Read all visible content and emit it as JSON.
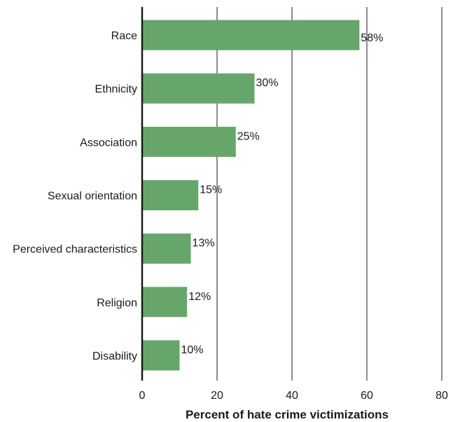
{
  "chart_data": {
    "type": "bar",
    "orientation": "horizontal",
    "categories": [
      "Race",
      "Ethnicity",
      "Association",
      "Sexual orientation",
      "Perceived characteristics",
      "Religion",
      "Disability"
    ],
    "values": [
      58,
      30,
      25,
      15,
      13,
      12,
      10
    ],
    "value_labels": [
      "58%",
      "30%",
      "25%",
      "15%",
      "13%",
      "12%",
      "10%"
    ],
    "xlabel": "Percent of hate crime victimizations",
    "xlim": [
      0,
      80
    ],
    "xticks": [
      0,
      20,
      40,
      60,
      80
    ],
    "grid": "vertical",
    "bar_color": "#66a66a",
    "grid_color": "#1a1a1a"
  }
}
